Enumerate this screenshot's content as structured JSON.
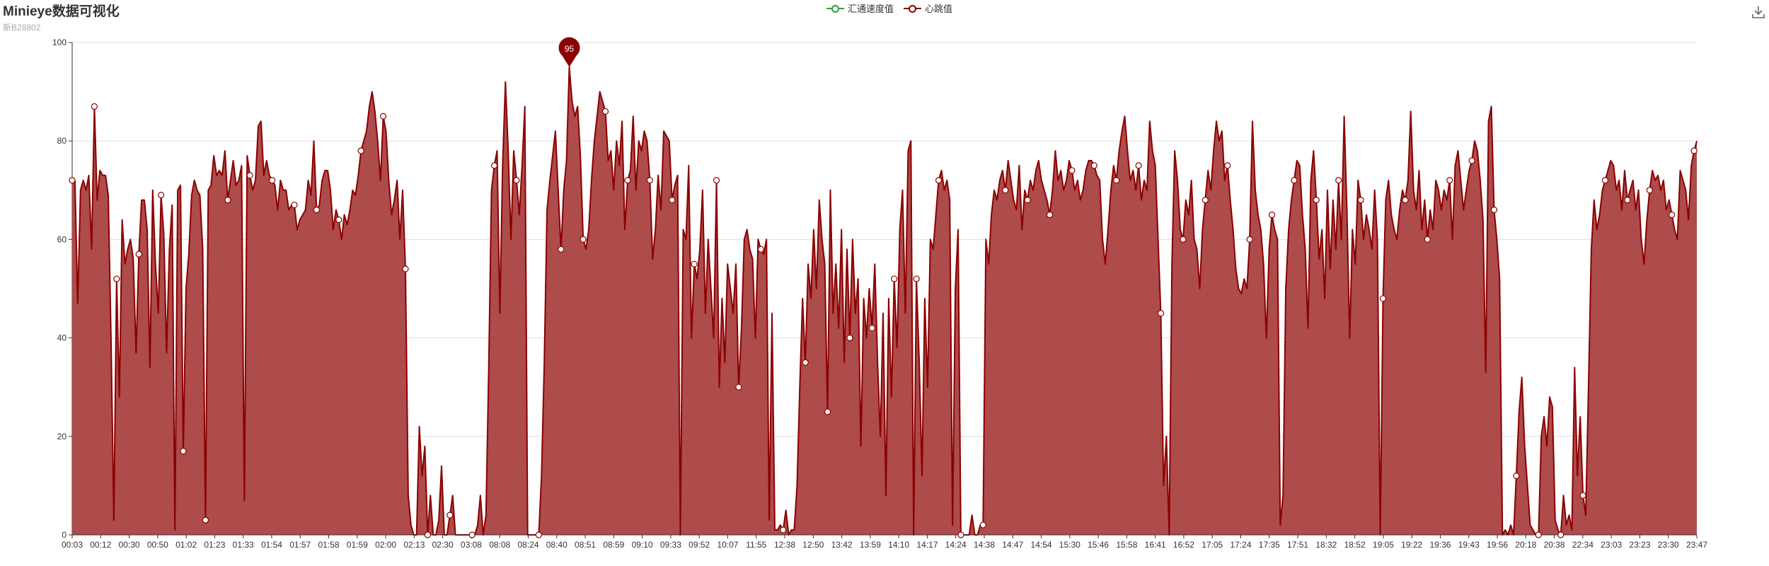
{
  "title": "Minieye数据可视化",
  "subtitle": "新B28802",
  "legend": [
    {
      "name": "汇通速度值",
      "color": "#2f9e3a"
    },
    {
      "name": "心跳值",
      "color": "#8b0000"
    }
  ],
  "toolbox": {
    "download_icon": "download-icon"
  },
  "chart_data": {
    "type": "area",
    "ylim": [
      0,
      100
    ],
    "yticks": [
      0,
      20,
      40,
      60,
      80,
      100
    ],
    "grid": true,
    "legend_position": "top-center",
    "x_labels": [
      "00:03",
      "00:12",
      "00:30",
      "00:50",
      "01:02",
      "01:23",
      "01:33",
      "01:54",
      "01:57",
      "01:58",
      "01:59",
      "02:00",
      "02:13",
      "02:30",
      "03:08",
      "08:08",
      "08:24",
      "08:40",
      "08:51",
      "08:59",
      "09:10",
      "09:33",
      "09:52",
      "10:07",
      "11:55",
      "12:38",
      "12:50",
      "13:42",
      "13:59",
      "14:10",
      "14:17",
      "14:24",
      "14:38",
      "14:47",
      "14:54",
      "15:30",
      "15:46",
      "15:58",
      "16:41",
      "16:52",
      "17:05",
      "17:24",
      "17:35",
      "17:51",
      "18:32",
      "18:52",
      "19:05",
      "19:22",
      "19:36",
      "19:43",
      "19:56",
      "20:18",
      "20:38",
      "22:34",
      "23:03",
      "23:23",
      "23:30",
      "23:47"
    ],
    "series": [
      {
        "name": "心跳值",
        "color": "#8b0000",
        "fill": "#ae4b4b",
        "max_pin": {
          "index": 30,
          "value": 95
        },
        "values": [
          [
            72,
            72,
            47,
            70,
            72,
            70,
            73,
            58,
            87,
            68,
            74,
            73,
            73,
            69,
            40,
            3,
            52,
            28,
            64,
            55,
            58,
            60,
            56,
            37,
            57,
            68,
            68,
            62,
            34,
            70,
            55,
            45,
            69,
            61,
            37,
            58,
            67,
            1,
            70,
            71,
            17,
            50,
            57,
            69,
            72,
            70,
            69,
            58,
            3,
            70,
            71,
            77,
            73,
            74,
            73,
            78,
            68,
            72,
            76,
            71,
            72,
            75,
            7,
            77,
            73,
            70,
            72,
            83,
            84,
            73,
            76,
            73,
            72,
            71,
            66,
            72,
            70,
            70,
            66,
            67,
            67,
            62,
            64,
            65,
            66,
            72,
            69,
            80,
            66,
            67,
            72,
            74,
            74,
            70,
            62,
            66,
            64,
            60,
            65,
            63,
            66,
            70,
            69,
            73,
            78,
            80,
            82,
            87,
            90,
            86,
            80,
            72,
            85,
            82,
            72,
            65,
            68,
            72,
            60,
            70,
            54,
            8,
            2
          ],
          [
            0,
            0,
            22,
            12,
            18,
            0,
            8,
            0,
            0,
            3,
            14,
            0,
            0,
            4,
            8,
            0,
            0,
            0,
            0,
            0,
            0,
            0,
            0,
            2,
            8,
            0
          ],
          [
            4,
            34,
            70,
            75,
            78,
            45,
            75,
            92,
            78,
            60,
            78,
            72,
            65,
            75,
            87,
            0,
            0,
            0,
            0,
            0
          ],
          [
            12,
            35,
            66,
            72,
            77,
            82,
            70,
            58,
            70,
            76,
            95,
            88,
            85,
            87,
            77,
            60,
            58,
            62,
            72,
            80,
            85,
            90,
            88,
            86,
            76,
            78,
            70,
            80,
            75,
            84,
            62,
            72,
            74,
            85,
            70,
            80,
            78,
            82,
            80,
            72,
            56,
            62,
            73,
            66,
            82,
            81,
            80,
            68,
            71,
            73,
            0
          ],
          [
            62,
            60,
            75,
            40,
            55,
            52,
            58,
            70,
            45,
            60,
            50,
            40,
            72,
            30,
            48,
            35,
            55,
            50,
            45,
            55,
            30,
            42,
            60,
            62,
            58,
            56,
            40,
            60,
            58,
            57,
            60,
            3,
            45,
            1,
            1
          ],
          [
            2,
            1,
            5,
            0,
            1,
            1
          ],
          [
            10,
            30,
            48,
            35,
            55,
            48,
            62,
            50,
            68,
            60,
            55,
            25,
            70,
            45,
            55,
            42,
            62,
            35,
            58,
            40,
            60,
            45,
            52,
            18,
            48,
            40,
            50,
            42,
            55,
            35,
            20,
            45,
            8,
            48,
            28,
            52,
            38,
            62,
            70,
            45,
            78,
            80
          ],
          [
            0,
            52,
            35,
            12,
            48,
            30,
            60,
            58,
            65,
            72,
            74,
            70,
            72,
            68,
            2,
            50,
            62
          ],
          [
            0,
            0,
            0,
            0,
            4,
            0,
            0,
            2
          ],
          [
            2,
            60,
            55,
            65,
            70,
            68,
            72,
            74,
            70,
            76,
            72,
            68,
            66,
            75,
            62,
            70,
            68,
            72,
            70,
            74,
            76,
            72,
            70,
            68,
            65,
            70,
            78,
            72,
            74,
            70,
            72,
            76,
            74,
            70,
            72,
            68,
            70,
            74,
            76,
            76,
            75,
            73,
            72
          ],
          [
            60,
            55,
            62,
            70,
            75,
            72,
            78,
            82,
            85,
            78,
            72,
            74,
            70,
            75,
            68,
            72,
            70,
            84,
            78,
            75,
            60,
            45,
            10,
            20,
            0
          ],
          [
            55,
            78,
            72,
            62,
            60,
            68,
            65,
            72,
            60,
            58,
            50,
            62,
            68,
            74,
            70,
            78,
            84,
            80,
            82,
            72,
            75,
            68,
            62,
            54,
            50,
            49,
            52,
            50,
            60,
            84,
            70,
            65,
            62,
            55,
            40,
            58,
            65,
            62,
            60,
            2,
            8,
            50,
            62,
            68,
            72,
            76,
            75,
            65
          ],
          [
            58,
            42,
            72,
            78,
            68,
            56,
            62,
            48,
            70,
            54,
            68,
            58,
            72,
            60,
            85,
            66,
            40,
            62,
            55,
            72,
            68,
            60,
            65,
            62,
            58,
            70,
            60,
            0
          ],
          [
            48,
            68,
            72,
            65,
            62,
            60,
            66,
            70,
            68,
            72,
            86,
            70,
            66,
            74,
            62,
            68,
            60,
            66,
            62,
            72,
            70,
            66,
            70,
            68,
            72,
            60,
            75,
            78,
            72,
            66,
            70,
            74,
            76,
            80,
            78,
            72,
            64,
            33,
            84,
            87,
            66,
            60,
            52
          ],
          [
            0,
            1,
            0,
            2,
            0,
            12,
            25,
            32,
            18,
            10,
            2,
            1,
            0,
            0,
            20,
            24,
            18,
            28,
            26,
            3,
            1,
            0
          ],
          [
            8,
            2,
            4,
            1,
            34,
            12,
            24,
            8,
            4,
            30,
            58,
            68,
            62,
            65,
            70,
            72,
            74,
            76,
            75,
            70,
            72,
            66,
            74,
            68,
            70,
            72,
            66,
            70,
            60,
            55,
            64,
            70,
            74,
            72,
            73,
            70,
            72,
            66,
            68,
            65,
            62,
            60,
            74,
            72,
            70,
            64,
            75,
            78,
            80
          ]
        ]
      }
    ]
  }
}
